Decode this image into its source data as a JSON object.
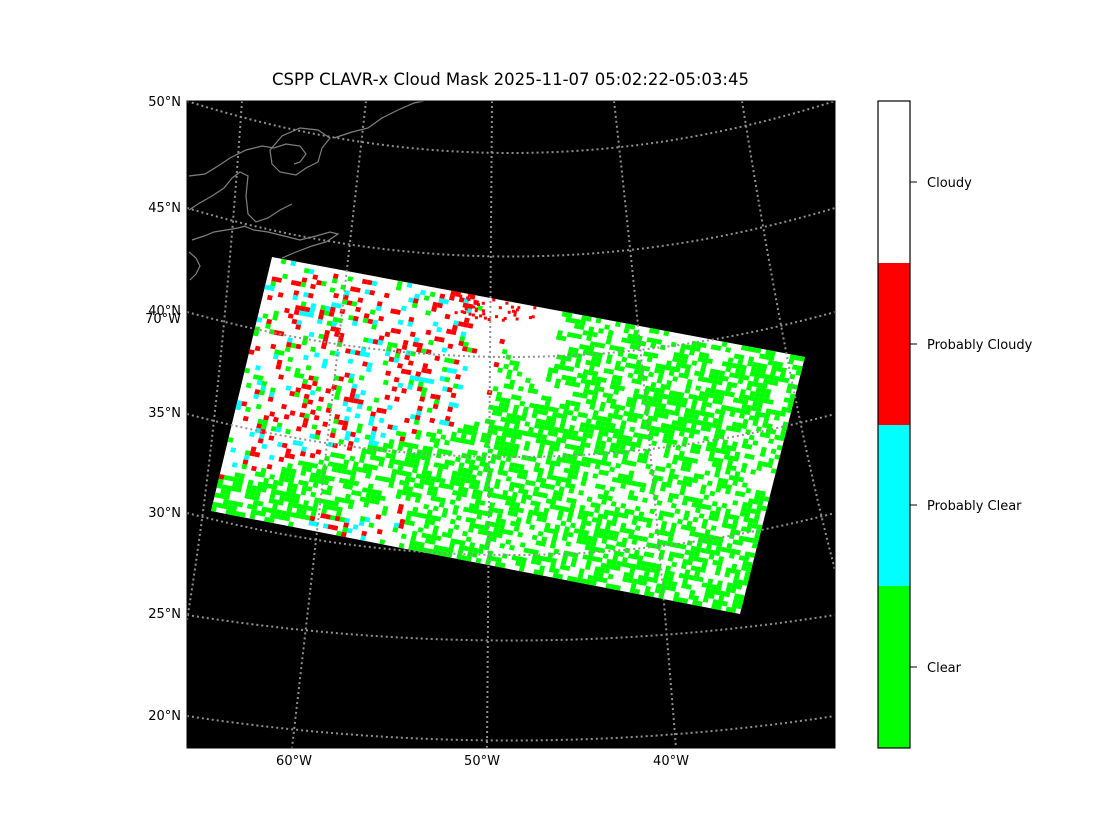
{
  "title": "CSPP CLAVR-x Cloud Mask 2025-11-07 05:02:22-05:03:45",
  "map": {
    "lat_labels": [
      "50°N",
      "45°N",
      "40°N",
      "35°N",
      "30°N",
      "25°N",
      "20°N"
    ],
    "lon_labels": [
      "60°W",
      "50°W",
      "40°W"
    ],
    "extra_labels": [
      "70°W"
    ],
    "background_color": "#000000",
    "coastline_color": "#808080",
    "graticule_color": "#909090",
    "graticule_style": "dotted"
  },
  "colorbar": {
    "categories": [
      {
        "label": "Cloudy",
        "color": "#ffffff"
      },
      {
        "label": "Probably Cloudy",
        "color": "#ff0000"
      },
      {
        "label": "Probably Clear",
        "color": "#00ffff"
      },
      {
        "label": "Clear",
        "color": "#00ff00"
      }
    ]
  }
}
